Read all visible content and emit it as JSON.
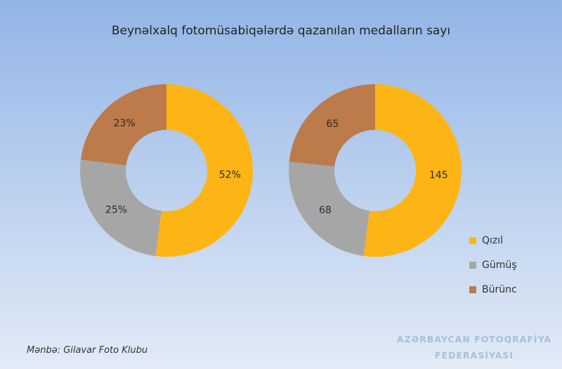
{
  "title": "Beynəlxalq fotomüsabiqələrdə qazanılan medalların sayı",
  "colors": {
    "gold": "#fdb515",
    "silver": "#a6a6a6",
    "bronze": "#bd7a4a"
  },
  "legend": [
    {
      "label": "Qızıl",
      "color": "#fdb515"
    },
    {
      "label": "Gümüş",
      "color": "#a6a6a6"
    },
    {
      "label": "Bürünc",
      "color": "#bd7a4a"
    }
  ],
  "chart_data": [
    {
      "type": "pie",
      "categories": [
        "Qızıl",
        "Gümüş",
        "Bürünc"
      ],
      "values": [
        52,
        25,
        23
      ],
      "labels": [
        "52%",
        "25%",
        "23%"
      ]
    },
    {
      "type": "pie",
      "categories": [
        "Qızıl",
        "Gümüş",
        "Bürünc"
      ],
      "values": [
        145,
        68,
        65
      ],
      "labels": [
        "145",
        "68",
        "65"
      ]
    }
  ],
  "source": "Mənbə: Gilavar Foto Klubu",
  "brand": {
    "line1": "AZƏRBAYCAN FOTOQRAFİYA",
    "line2": "FEDERASİYASI"
  }
}
